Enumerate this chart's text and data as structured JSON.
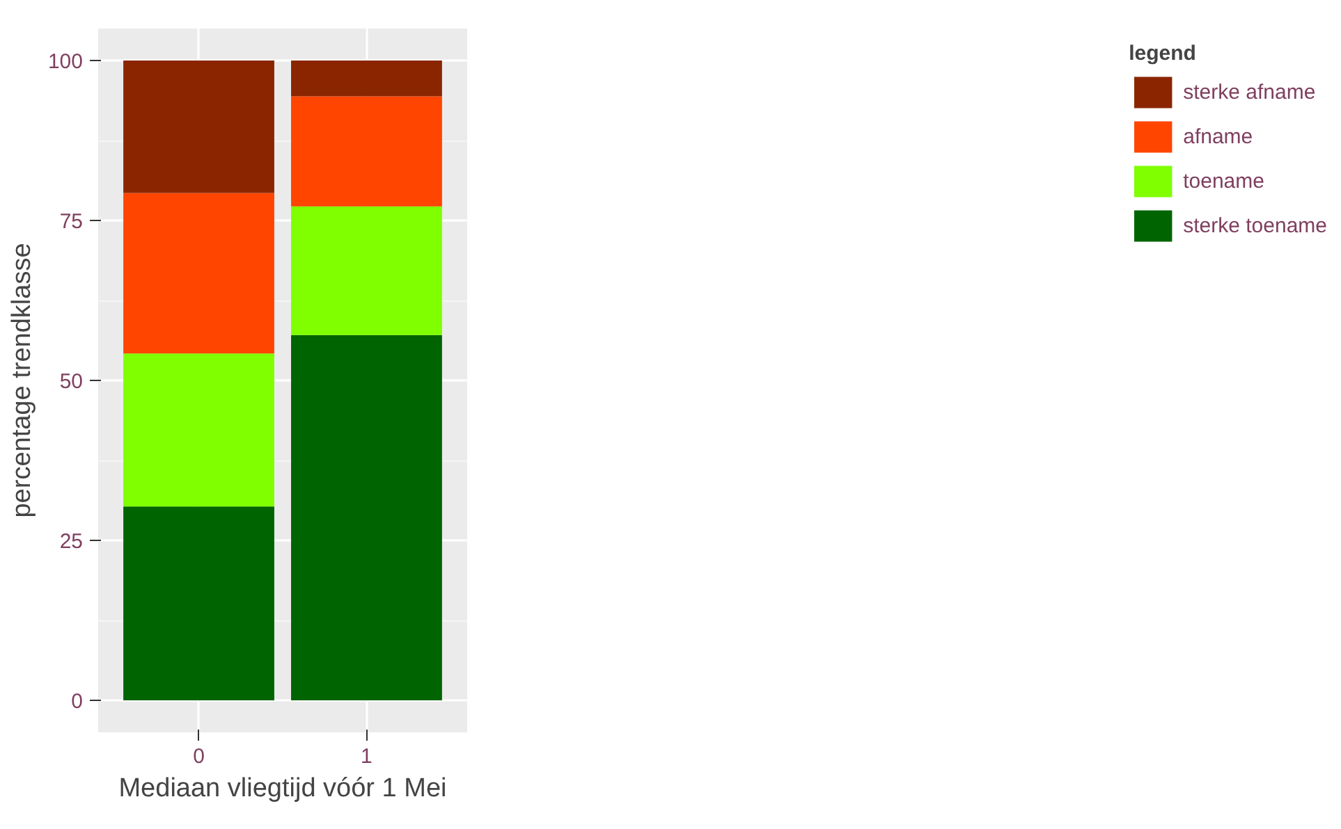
{
  "chart_data": {
    "type": "bar",
    "stacked": true,
    "xlabel": "Mediaan vliegtijd vóór 1 Mei",
    "ylabel": "percentage trendklasse",
    "legend_title": "legend",
    "categories": [
      "0",
      "1"
    ],
    "series": [
      {
        "name": "sterke toename",
        "color": "#006400",
        "values": [
          30.3,
          57.1
        ]
      },
      {
        "name": "toename",
        "color": "#7fff00",
        "values": [
          23.9,
          20.1
        ]
      },
      {
        "name": "afname",
        "color": "#ff4500",
        "values": [
          25.1,
          17.2
        ]
      },
      {
        "name": "sterke afname",
        "color": "#8b2500",
        "values": [
          20.7,
          5.6
        ]
      }
    ],
    "ylim": [
      -5,
      105
    ],
    "yticks": [
      0,
      25,
      50,
      75,
      100
    ],
    "grid": true,
    "legend": "right"
  }
}
